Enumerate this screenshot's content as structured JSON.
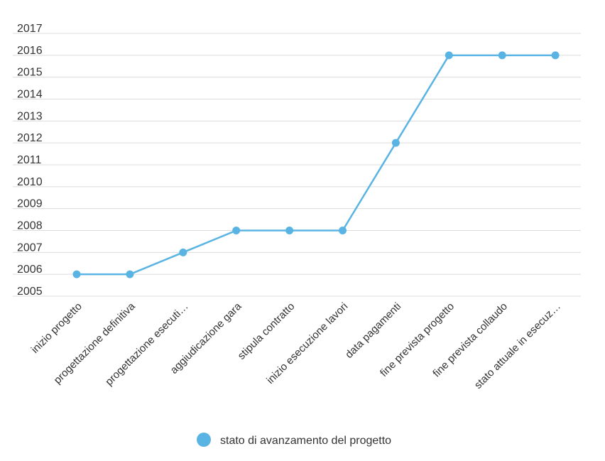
{
  "colors": {
    "series": "#5ab4e3",
    "grid": "#dcdcdc",
    "text": "#333333"
  },
  "chart_data": {
    "type": "line",
    "categories": [
      "inizio progetto",
      "progettazione definitiva",
      "progettazione esecuti…",
      "aggiudicazione gara",
      "stipula contratto",
      "inizio esecuzione lavori",
      "data pagamenti",
      "fine prevista progetto",
      "fine prevista collaudo",
      "stato attuale in esecuz…"
    ],
    "series": [
      {
        "name": "stato di avanzamento del progetto",
        "values": [
          2006,
          2006,
          2007,
          2008,
          2008,
          2008,
          2012,
          2016,
          2016,
          2016
        ]
      }
    ],
    "yticks": [
      2005,
      2006,
      2007,
      2008,
      2009,
      2010,
      2011,
      2012,
      2013,
      2014,
      2015,
      2016,
      2017
    ],
    "ylim": [
      2005,
      2017
    ],
    "grid": true,
    "legend": "bottom-center",
    "title": "",
    "xlabel": "",
    "ylabel": ""
  }
}
